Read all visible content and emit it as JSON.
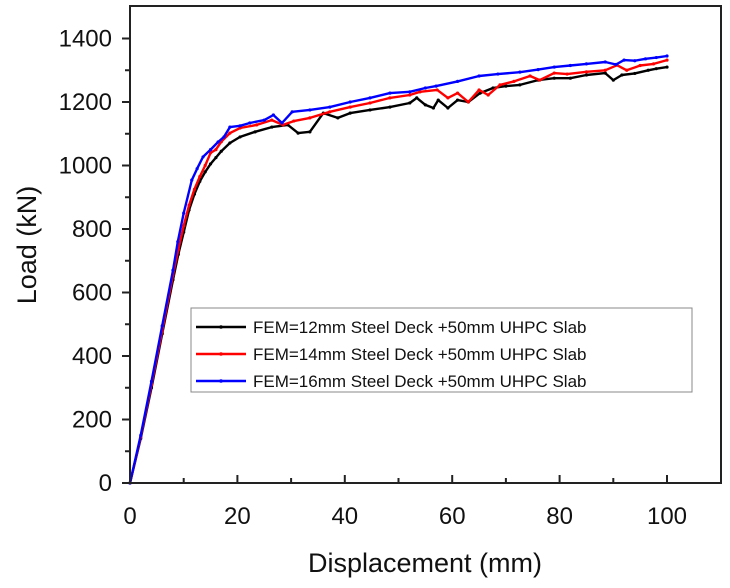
{
  "chart_data": {
    "type": "line",
    "title": "",
    "xlabel": "Displacement (mm)",
    "ylabel": "Load (kN)",
    "xlim": [
      0,
      110
    ],
    "ylim": [
      0,
      1500
    ],
    "xticks": [
      0,
      20,
      40,
      60,
      80,
      100
    ],
    "xticks_minor": [
      10,
      30,
      50,
      70,
      90
    ],
    "yticks": [
      0,
      200,
      400,
      600,
      800,
      1000,
      1200,
      1400
    ],
    "yticks_minor": [
      100,
      300,
      500,
      700,
      900,
      1100,
      1300
    ],
    "grid": false,
    "legend_position": "center-right inside plot",
    "series": [
      {
        "name": "FEM=12mm Steel Deck +50mm UHPC Slab",
        "color": "#000000",
        "x": [
          0,
          2,
          4,
          6,
          8,
          9,
          10,
          11,
          12,
          13,
          14,
          15,
          16,
          17,
          18.6,
          20.5,
          23.3,
          26.4,
          29.4,
          31.3,
          33.5,
          36,
          38.7,
          41,
          44.7,
          48.4,
          52.1,
          53.4,
          55,
          56.5,
          57.4,
          59.2,
          61,
          63,
          65.2,
          67.6,
          70,
          72.6,
          76,
          79,
          82,
          85,
          88.5,
          90,
          91.6,
          94,
          96.5,
          98,
          100
        ],
        "y": [
          0,
          140,
          300,
          470,
          640,
          720,
          790,
          860,
          910,
          950,
          980,
          1005,
          1025,
          1045,
          1071,
          1090,
          1106,
          1121,
          1128,
          1102,
          1106,
          1165,
          1150,
          1165,
          1175,
          1184,
          1197,
          1213,
          1191,
          1181,
          1206,
          1181,
          1206,
          1200,
          1228,
          1244,
          1250,
          1254,
          1269,
          1275,
          1275,
          1285,
          1291,
          1269,
          1285,
          1290,
          1300,
          1305,
          1310
        ]
      },
      {
        "name": "FEM=14mm Steel Deck +50mm UHPC Slab",
        "color": "#ff0000",
        "x": [
          0,
          2,
          4,
          6,
          8,
          9,
          10,
          11,
          12,
          13,
          14,
          15,
          16,
          17,
          18.6,
          20.5,
          23.6,
          26.4,
          28.5,
          30.5,
          33.5,
          37.2,
          41,
          44.7,
          48.4,
          52.1,
          54,
          57.2,
          59.2,
          61,
          63,
          65,
          66.7,
          68.9,
          71.5,
          74.5,
          76.3,
          79,
          81.4,
          85,
          88.5,
          90.7,
          92.5,
          95,
          97.5,
          100
        ],
        "y": [
          0,
          145,
          310,
          480,
          655,
          735,
          810,
          875,
          925,
          965,
          1000,
          1040,
          1050,
          1075,
          1102,
          1118,
          1128,
          1143,
          1128,
          1140,
          1150,
          1169,
          1184,
          1197,
          1213,
          1222,
          1232,
          1238,
          1213,
          1228,
          1200,
          1238,
          1222,
          1254,
          1265,
          1282,
          1269,
          1291,
          1288,
          1295,
          1300,
          1316,
          1300,
          1315,
          1320,
          1332
        ]
      },
      {
        "name": "FEM=16mm Steel Deck +50mm UHPC Slab",
        "color": "#0000ff",
        "x": [
          0,
          2,
          4,
          6,
          8,
          8.9,
          10,
          11.5,
          12.5,
          13.6,
          15,
          16.4,
          17.5,
          18.6,
          20.5,
          22.3,
          25,
          26.7,
          28.3,
          30.2,
          33.5,
          37.2,
          41,
          44.7,
          48.4,
          52.1,
          55,
          57,
          61,
          65,
          68.5,
          72.6,
          76,
          79,
          82,
          85,
          88.5,
          90.5,
          92,
          94,
          96,
          98,
          100
        ],
        "y": [
          0,
          150,
          320,
          495,
          670,
          760,
          850,
          954,
          990,
          1027,
          1050,
          1074,
          1090,
          1121,
          1125,
          1134,
          1143,
          1159,
          1134,
          1169,
          1175,
          1184,
          1200,
          1213,
          1228,
          1232,
          1244,
          1250,
          1265,
          1282,
          1288,
          1294,
          1302,
          1310,
          1315,
          1320,
          1326,
          1318,
          1332,
          1330,
          1336,
          1340,
          1345
        ]
      }
    ]
  }
}
